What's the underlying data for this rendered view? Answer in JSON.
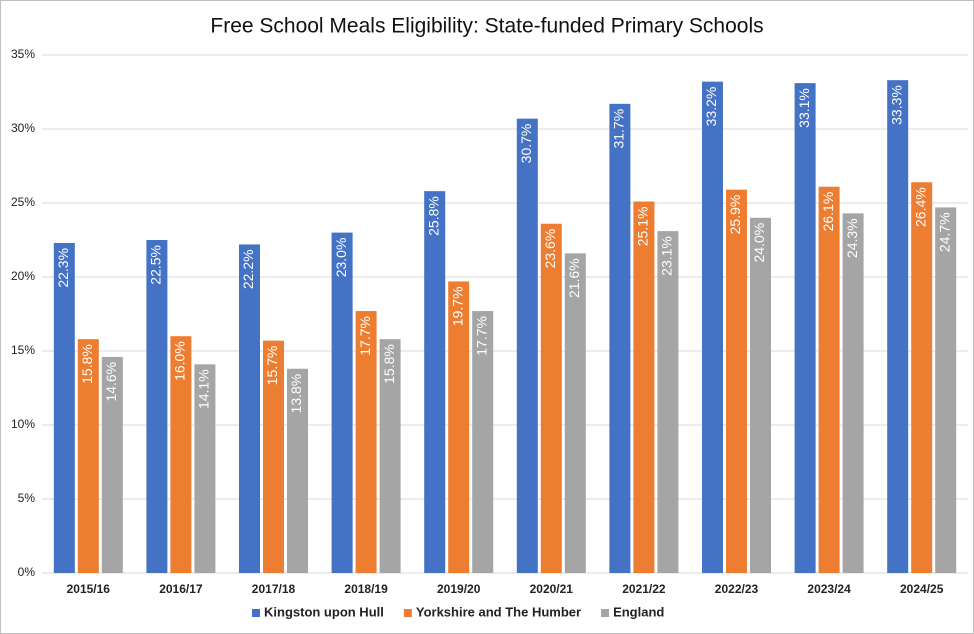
{
  "chart_data": {
    "type": "bar",
    "title": "Free School Meals Eligibility: State-funded Primary Schools",
    "categories": [
      "2015/16",
      "2016/17",
      "2017/18",
      "2018/19",
      "2019/20",
      "2020/21",
      "2021/22",
      "2022/23",
      "2023/24",
      "2024/25"
    ],
    "series": [
      {
        "name": "Kingston upon Hull",
        "color": "#4472c4",
        "values": [
          22.3,
          22.5,
          22.2,
          23.0,
          25.8,
          30.7,
          31.7,
          33.2,
          33.1,
          33.3
        ],
        "value_labels": [
          "22.3%",
          "22.5%",
          "22.2%",
          "23.0%",
          "25.8%",
          "30.7%",
          "31.7%",
          "33.2%",
          "33.1%",
          "33.3%"
        ]
      },
      {
        "name": "Yorkshire and The Humber",
        "color": "#ed7d31",
        "values": [
          15.8,
          16.0,
          15.7,
          17.7,
          19.7,
          23.6,
          25.1,
          25.9,
          26.1,
          26.4
        ],
        "value_labels": [
          "15.8%",
          "16.0%",
          "15.7%",
          "17.7%",
          "19.7%",
          "23.6%",
          "25.1%",
          "25.9%",
          "26.1%",
          "26.4%"
        ]
      },
      {
        "name": "England",
        "color": "#a5a5a5",
        "values": [
          14.6,
          14.1,
          13.8,
          15.8,
          17.7,
          21.6,
          23.1,
          24.0,
          24.3,
          24.7
        ],
        "value_labels": [
          "14.6%",
          "14.1%",
          "13.8%",
          "15.8%",
          "17.7%",
          "21.6%",
          "23.1%",
          "24.0%",
          "24.3%",
          "24.7%"
        ]
      }
    ],
    "ylim": [
      0,
      35
    ],
    "yticks": [
      {
        "value": 0,
        "label": "0%"
      },
      {
        "value": 5,
        "label": "5%"
      },
      {
        "value": 10,
        "label": "10%"
      },
      {
        "value": 15,
        "label": "15%"
      },
      {
        "value": 20,
        "label": "20%"
      },
      {
        "value": 25,
        "label": "25%"
      },
      {
        "value": 30,
        "label": "30%"
      },
      {
        "value": 35,
        "label": "35%"
      }
    ],
    "grid": true,
    "legend": "bottom"
  }
}
